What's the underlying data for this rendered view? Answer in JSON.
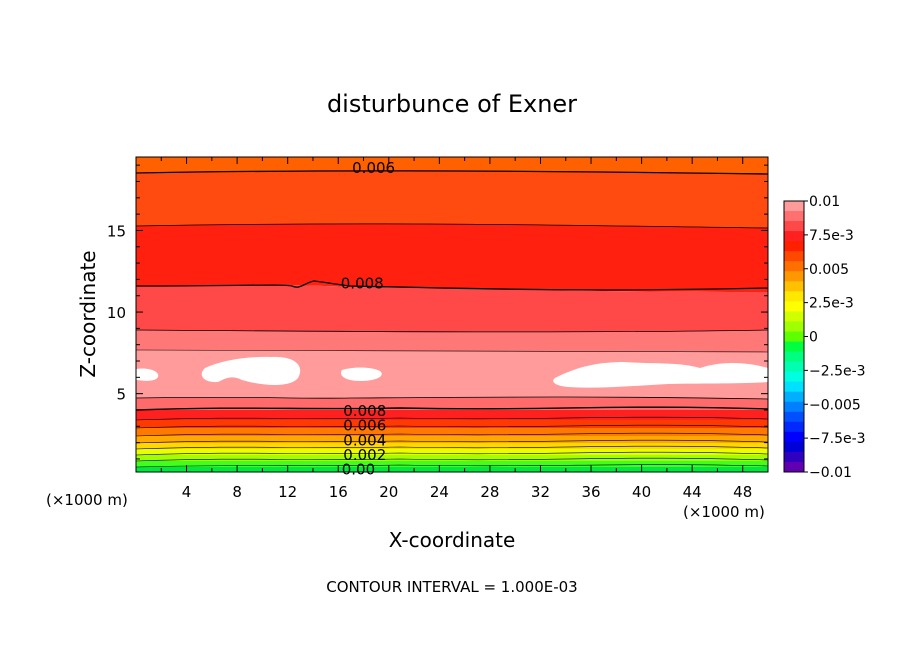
{
  "chart_data": {
    "type": "contour",
    "title": "disturbunce of Exner",
    "xlabel": "X-coordinate",
    "ylabel": "Z-coordinate",
    "x_unit_left": "(×1000 m)",
    "x_unit_right": "(×1000 m)",
    "footer": "CONTOUR INTERVAL = 1.000E-03",
    "xlim": [
      0,
      50
    ],
    "ylim": [
      0.2,
      19.5
    ],
    "x_ticks": [
      4,
      8,
      12,
      16,
      20,
      24,
      28,
      32,
      36,
      40,
      44,
      48
    ],
    "y_ticks": [
      5,
      10,
      15
    ],
    "contour_labels": [
      {
        "text": "0.006",
        "x": 18.8,
        "y": 18.9
      },
      {
        "text": "0.008",
        "x": 17.9,
        "y": 11.8
      },
      {
        "text": "0.008",
        "x": 18.1,
        "y": 4.0
      },
      {
        "text": "0.006",
        "x": 18.1,
        "y": 3.1
      },
      {
        "text": "0.004",
        "x": 18.1,
        "y": 2.2
      },
      {
        "text": "0.002",
        "x": 18.1,
        "y": 1.3
      },
      {
        "text": "0.00",
        "x": 17.6,
        "y": 0.4
      }
    ],
    "colorbar": {
      "labels": [
        "0.01",
        "7.5e-3",
        "0.005",
        "2.5e-3",
        "0",
        "−2.5e-3",
        "−0.005",
        "−7.5e-3",
        "−0.01"
      ],
      "colors": [
        "#ff9b9b",
        "#ff7070",
        "#ff4848",
        "#ff2020",
        "#ff2000",
        "#ff4800",
        "#ff7000",
        "#ff9800",
        "#ffc000",
        "#ffe800",
        "#ffff00",
        "#d0ff00",
        "#a0ff00",
        "#60ff00",
        "#00ff40",
        "#00ff80",
        "#00ffb0",
        "#00ffe0",
        "#00e0ff",
        "#00b0ff",
        "#0080ff",
        "#0050ff",
        "#0028ff",
        "#0000ff",
        "#0000d8",
        "#3000c0",
        "#6000b0"
      ]
    }
  }
}
